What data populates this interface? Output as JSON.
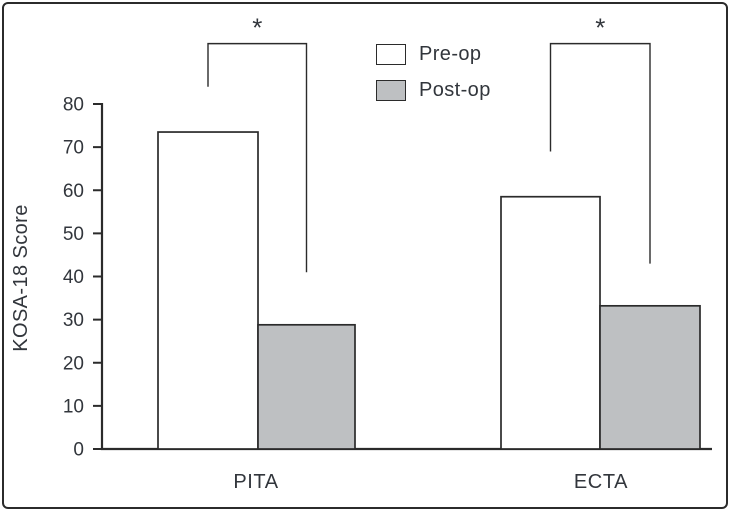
{
  "figure": {
    "background": "#ffffff",
    "border_color": "#2b2b2b",
    "line_color": "#2b2b2b",
    "text_color": "#32363c"
  },
  "legend": {
    "items": [
      {
        "label": "Pre-op",
        "swatch_color": "#ffffff"
      },
      {
        "label": "Post-op",
        "swatch_color": "#bec0c2"
      }
    ]
  },
  "chart_data": {
    "type": "bar",
    "title": "",
    "xlabel": "",
    "ylabel": "KOSA-18 Score",
    "categories": [
      "PITA",
      "ECTA"
    ],
    "series": [
      {
        "name": "Pre-op",
        "fill": "#ffffff",
        "values": [
          73.5,
          58.5
        ]
      },
      {
        "name": "Post-op",
        "fill": "#bec0c2",
        "values": [
          28.8,
          33.2
        ]
      }
    ],
    "ylim": [
      0,
      80
    ],
    "yticks": [
      0,
      10,
      20,
      30,
      40,
      50,
      60,
      70,
      80
    ],
    "grid": false,
    "legend_position": "top-center",
    "annotations": [
      {
        "category": "PITA",
        "marker": "*",
        "bracket_top_value": 94,
        "left_arm_bottom_value": 84,
        "right_arm_bottom_value": 41
      },
      {
        "category": "ECTA",
        "marker": "*",
        "bracket_top_value": 94,
        "left_arm_bottom_value": 69,
        "right_arm_bottom_value": 43
      }
    ]
  }
}
